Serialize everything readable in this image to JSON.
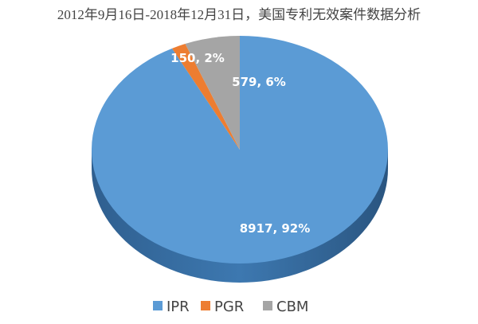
{
  "chart_data": {
    "type": "pie",
    "title": "2012年9月16日-2018年12月31日，美国专利无效案件数据分析",
    "style": "3d",
    "legend_position": "bottom",
    "series": [
      {
        "name": "IPR",
        "value": 8917,
        "percent": 92,
        "color": "#5b9bd5",
        "label": "8917, 92%"
      },
      {
        "name": "PGR",
        "value": 150,
        "percent": 2,
        "color": "#ed7d31",
        "label": "150, 2%"
      },
      {
        "name": "CBM",
        "value": 579,
        "percent": 6,
        "color": "#a5a5a5",
        "label": "579, 6%"
      }
    ]
  }
}
